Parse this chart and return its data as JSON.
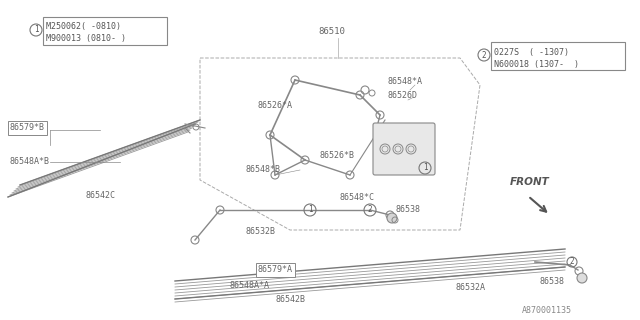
{
  "bg_color": "#ffffff",
  "lc": "#888888",
  "tc": "#666666",
  "box1_line1": "M250062( -0810)",
  "box1_line2": "M900013 (0810- )",
  "box2_line1": "0227S  ( -1307)",
  "box2_line2": "N600018 (1307-  )",
  "footer": "A870001135",
  "front": "FRONT"
}
